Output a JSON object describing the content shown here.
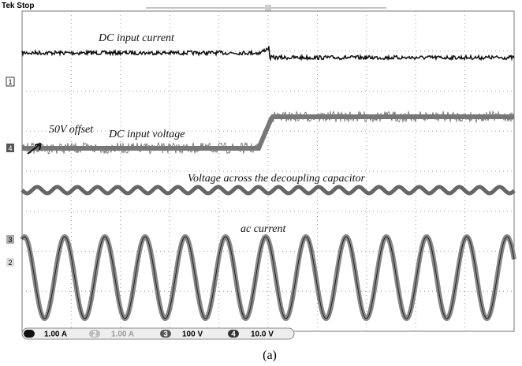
{
  "header": {
    "status": "Tek Stop"
  },
  "annotations": {
    "dc_current": "DC input current",
    "offset": "50V offset",
    "dc_voltage": "DC input voltage",
    "cap_voltage": "Voltage across the decoupling capacitor",
    "ac_current": "ac current"
  },
  "channel_markers": [
    "1",
    "4",
    "3",
    "2"
  ],
  "status_bar": {
    "ch1_scale": "1.00 A",
    "ch2_label": "2",
    "ch2_scale": "1.00 A",
    "ch3_label": "3",
    "ch3_scale": "100 V",
    "ch4_label": "4",
    "ch4_scale": "10.0 V"
  },
  "caption": "(a)"
}
